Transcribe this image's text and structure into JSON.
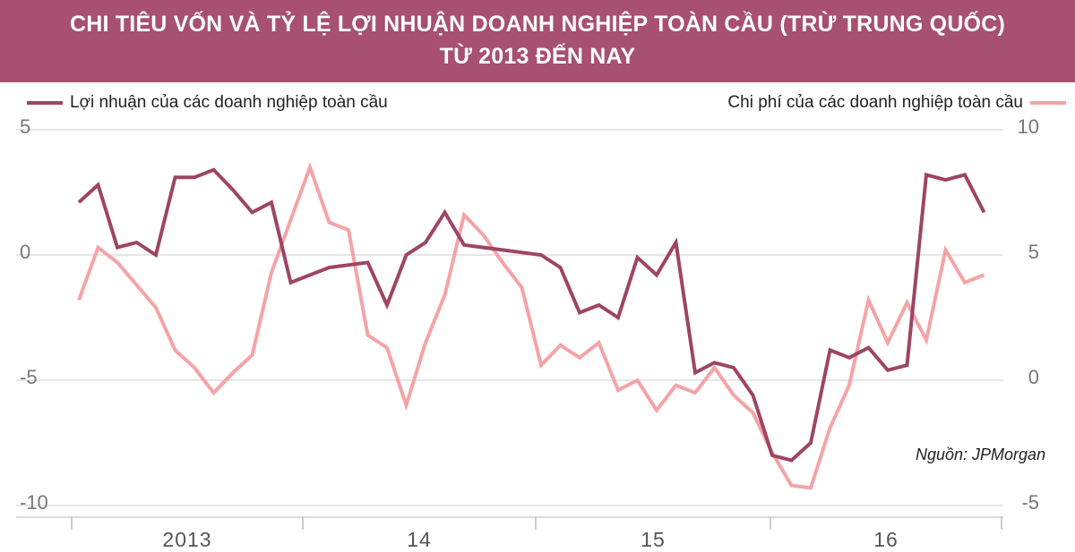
{
  "title": {
    "line1": "CHI TIÊU VỐN VÀ TỶ LỆ LỢI NHUẬN DOANH NGHIỆP TOÀN CẦU (TRỪ TRUNG QUỐC)",
    "line2": "TỪ 2013 ĐẾN NAY"
  },
  "source": "Nguồn: JPMorgan",
  "colors": {
    "header_bg": "#a7506f",
    "profit_line": "#9e4564",
    "capex_line": "#f4a4a6",
    "grid": "#cfcfcf",
    "tick_text": "#777777"
  },
  "chart_data": {
    "type": "line",
    "x_start": "2012-10",
    "x_step": "1 month",
    "x_ticks": [
      "2013",
      "14",
      "15",
      "16"
    ],
    "left_axis": {
      "ylim": [
        -10,
        5
      ],
      "ticks": [
        "5",
        "0",
        "-5",
        "-10"
      ]
    },
    "right_axis": {
      "ylim": [
        -5,
        10
      ],
      "ticks": [
        "10",
        "5",
        "0",
        "-5"
      ]
    },
    "grid": true,
    "legend_positions": [
      "top-left",
      "top-right"
    ],
    "series": [
      {
        "name": "Lợi nhuận của các doanh nghiệp toàn cầu",
        "axis": "left",
        "values": [
          2.1,
          2.8,
          0.3,
          0.5,
          0.0,
          3.1,
          3.1,
          3.4,
          2.6,
          1.7,
          2.1,
          -1.1,
          -0.8,
          -0.5,
          -0.4,
          -0.3,
          -2.0,
          0.0,
          0.5,
          1.7,
          0.4,
          0.3,
          0.2,
          0.1,
          0.0,
          -0.5,
          -2.3,
          -2.0,
          -2.5,
          -0.1,
          -0.8,
          0.5,
          -4.7,
          -4.3,
          -4.5,
          -5.6,
          -8.0,
          -8.2,
          -7.5,
          -3.8,
          -4.1,
          -3.7,
          -4.6,
          -4.4,
          3.2,
          3.0,
          3.2,
          1.7
        ]
      },
      {
        "name": "Chi phí của các doanh nghiệp toàn cầu",
        "axis": "right",
        "values": [
          3.2,
          5.3,
          4.7,
          3.8,
          2.9,
          1.2,
          0.5,
          -0.5,
          0.3,
          1.0,
          4.3,
          6.4,
          8.5,
          6.3,
          6.0,
          1.8,
          1.3,
          -1.0,
          1.5,
          3.4,
          6.6,
          5.8,
          4.7,
          3.7,
          0.6,
          1.4,
          0.9,
          1.5,
          -0.4,
          0.0,
          -1.2,
          -0.2,
          -0.5,
          0.5,
          -0.6,
          -1.3,
          -2.9,
          -4.2,
          -4.3,
          -1.9,
          -0.2,
          3.2,
          1.5,
          3.1,
          1.6,
          5.2,
          3.9,
          4.2
        ]
      }
    ]
  }
}
